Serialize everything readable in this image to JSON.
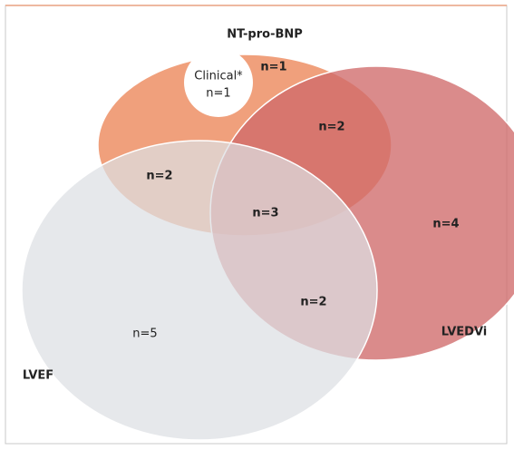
{
  "sets": [
    {
      "label": "NT-pro-BNP"
    },
    {
      "label": "LVEDVi"
    },
    {
      "label": "LVEF"
    }
  ],
  "clinical": {
    "label": "Clinical*",
    "count": "n=1"
  },
  "regions": [
    {
      "label": "n=1"
    },
    {
      "label": "n=2"
    },
    {
      "label": "n=2"
    },
    {
      "label": "n=3"
    },
    {
      "label": "n=4"
    },
    {
      "label": "n=2"
    },
    {
      "label": "n=5"
    }
  ]
}
